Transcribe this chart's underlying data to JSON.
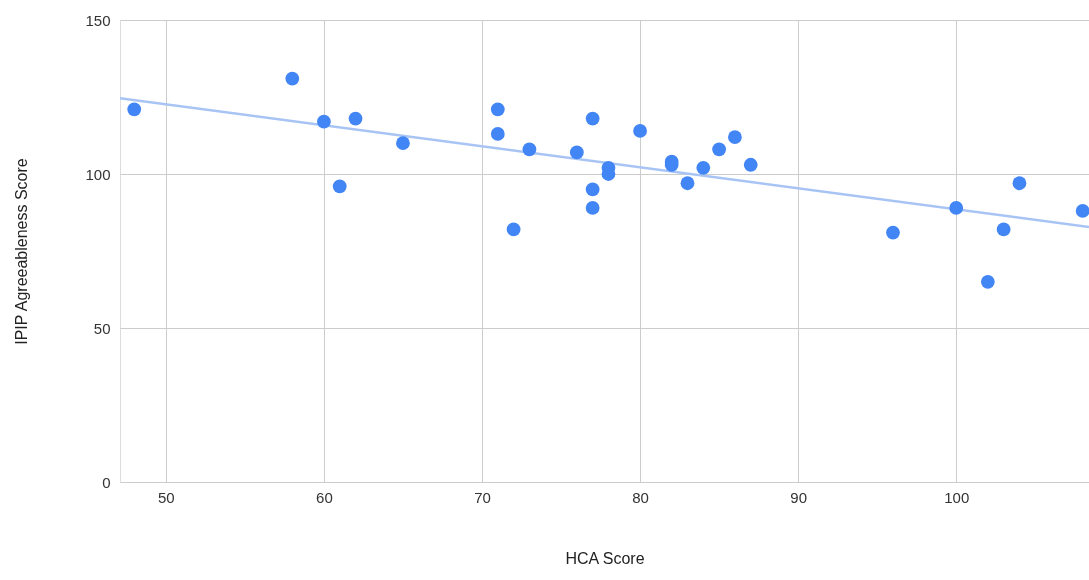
{
  "chart_data": {
    "type": "scatter",
    "xlabel": "HCA Score",
    "ylabel": "IPIP Agreeableness Score",
    "xlim": [
      47.1,
      108.4
    ],
    "ylim": [
      0,
      150
    ],
    "xticks": [
      50,
      60,
      70,
      80,
      90,
      100
    ],
    "yticks": [
      0,
      50,
      100,
      150
    ],
    "grid": true,
    "series": [
      {
        "color": "#4285f4",
        "marker": "circle",
        "x": [
          48,
          58,
          60,
          61,
          62,
          65,
          71,
          71,
          72,
          73,
          76,
          77,
          77,
          77,
          78,
          78,
          80,
          82,
          82,
          83,
          84,
          85,
          86,
          87,
          96,
          100,
          102,
          103,
          104,
          108
        ],
        "values": [
          121,
          131,
          117,
          96,
          118,
          110,
          121,
          113,
          82,
          108,
          107,
          118,
          95,
          89,
          102,
          100,
          114,
          104,
          103,
          97,
          102,
          108,
          112,
          103,
          81,
          89,
          65,
          82,
          97,
          88
        ]
      },
      {
        "type": "line",
        "marker": "none",
        "color": "#a8c4f5",
        "x": [
          47.1,
          108.4
        ],
        "values": [
          124.6,
          82.8
        ]
      }
    ]
  }
}
